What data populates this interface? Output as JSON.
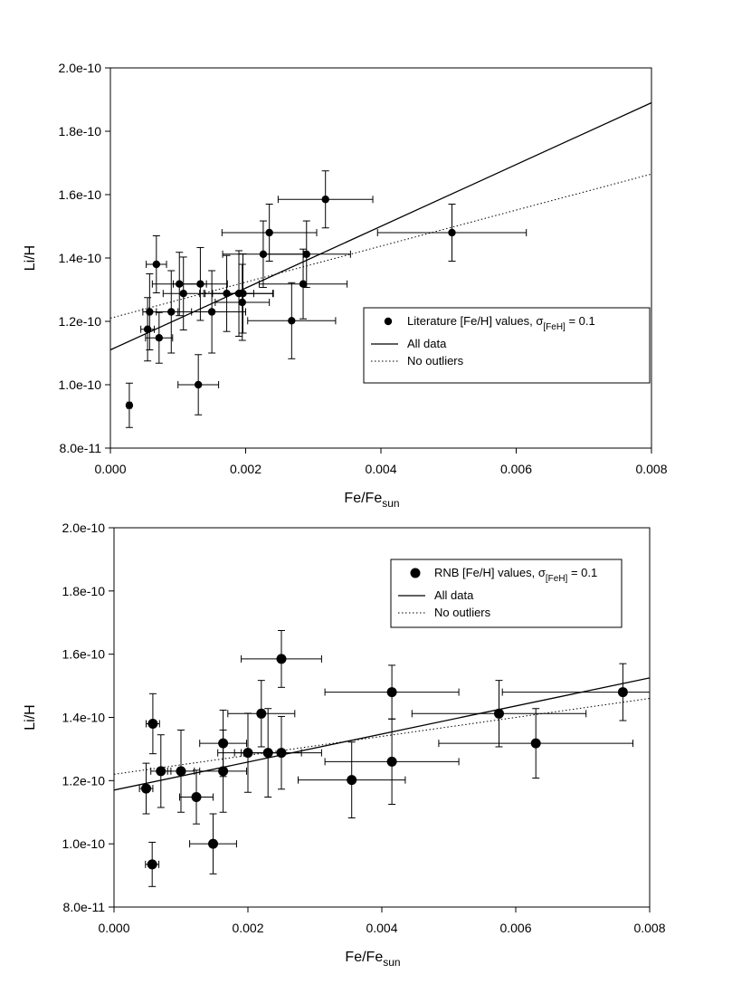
{
  "colors": {
    "ink": "#000000",
    "background": "#ffffff"
  },
  "chart_data": [
    {
      "type": "scatter",
      "xlabel": "Fe/Fe",
      "xlabel_sub": "sun",
      "ylabel": "Li/H",
      "xlim": [
        0,
        0.008
      ],
      "ylim": [
        8e-11,
        2e-10
      ],
      "x_ticks": [
        0,
        0.002,
        0.004,
        0.006,
        0.008
      ],
      "x_tick_labels": [
        "0.000",
        "0.002",
        "0.004",
        "0.006",
        "0.008"
      ],
      "y_ticks": [
        8e-11,
        1e-10,
        1.2e-10,
        1.4e-10,
        1.6e-10,
        1.8e-10,
        2e-10
      ],
      "y_tick_labels": [
        "8.0e-11",
        "1.0e-10",
        "1.2e-10",
        "1.4e-10",
        "1.6e-10",
        "1.8e-10",
        "2.0e-10"
      ],
      "grid": false,
      "legend_position": "center-right",
      "legend": {
        "points_label": "Literature [Fe/H] values, σ",
        "points_label_sub": "[FeH]",
        "points_label_suffix": " = 0.1",
        "line_label": "All data",
        "dotted_label": "No outliers"
      },
      "marker_size": "small",
      "series": [
        {
          "name": "Literature [Fe/H] values",
          "points": [
            {
              "x": 0.00028,
              "y": 9.35e-11,
              "xerr": [
                3e-05,
                3e-05
              ],
              "yerr": [
                7e-12,
                7e-12
              ]
            },
            {
              "x": 0.00055,
              "y": 1.175e-10,
              "xerr": [
                0.0001,
                0.0001
              ],
              "yerr": [
                1e-11,
                1e-11
              ]
            },
            {
              "x": 0.00058,
              "y": 1.23e-10,
              "xerr": [
                0.0001,
                0.0001
              ],
              "yerr": [
                1.2e-11,
                1.2e-11
              ]
            },
            {
              "x": 0.00068,
              "y": 1.38e-10,
              "xerr": [
                0.00015,
                0.00015
              ],
              "yerr": [
                9e-12,
                9e-12
              ]
            },
            {
              "x": 0.00072,
              "y": 1.148e-10,
              "xerr": [
                0.0002,
                0.0002
              ],
              "yerr": [
                8e-12,
                8e-12
              ]
            },
            {
              "x": 0.0009,
              "y": 1.23e-10,
              "xerr": [
                0.0003,
                0.0003
              ],
              "yerr": [
                1.3e-11,
                1.3e-11
              ]
            },
            {
              "x": 0.00102,
              "y": 1.318e-10,
              "xerr": [
                0.0004,
                0.0004
              ],
              "yerr": [
                1e-11,
                1e-11
              ]
            },
            {
              "x": 0.00108,
              "y": 1.288e-10,
              "xerr": [
                0.0003,
                0.0003
              ],
              "yerr": [
                1.15e-11,
                1.15e-11
              ]
            },
            {
              "x": 0.0013,
              "y": 1e-10,
              "xerr": [
                0.0003,
                0.0003
              ],
              "yerr": [
                9.5e-12,
                9.5e-12
              ]
            },
            {
              "x": 0.00133,
              "y": 1.318e-10,
              "xerr": [
                0.0004,
                0.0004
              ],
              "yerr": [
                1.15e-11,
                1.15e-11
              ]
            },
            {
              "x": 0.0015,
              "y": 1.23e-10,
              "xerr": [
                0.0005,
                0.0005
              ],
              "yerr": [
                1.3e-11,
                1.3e-11
              ]
            },
            {
              "x": 0.00172,
              "y": 1.288e-10,
              "xerr": [
                0.0004,
                0.0004
              ],
              "yerr": [
                1.2e-11,
                1.2e-11
              ]
            },
            {
              "x": 0.0019,
              "y": 1.288e-10,
              "xerr": [
                0.0005,
                0.0005
              ],
              "yerr": [
                1.35e-11,
                1.35e-11
              ]
            },
            {
              "x": 0.00195,
              "y": 1.26e-10,
              "xerr": [
                0.0004,
                0.0004
              ],
              "yerr": [
                1.2e-11,
                1.2e-11
              ]
            },
            {
              "x": 0.00196,
              "y": 1.288e-10,
              "xerr": [
                0.00045,
                0.00045
              ],
              "yerr": [
                1.25e-11,
                1.25e-11
              ]
            },
            {
              "x": 0.00226,
              "y": 1.412e-10,
              "xerr": [
                0.0006,
                0.0006
              ],
              "yerr": [
                1.05e-11,
                1.05e-11
              ]
            },
            {
              "x": 0.00235,
              "y": 1.48e-10,
              "xerr": [
                0.0007,
                0.0007
              ],
              "yerr": [
                9e-12,
                9e-12
              ]
            },
            {
              "x": 0.00268,
              "y": 1.202e-10,
              "xerr": [
                0.00065,
                0.00065
              ],
              "yerr": [
                1.2e-11,
                1.2e-11
              ]
            },
            {
              "x": 0.00285,
              "y": 1.318e-10,
              "xerr": [
                0.00065,
                0.00065
              ],
              "yerr": [
                1.1e-11,
                1.1e-11
              ]
            },
            {
              "x": 0.0029,
              "y": 1.412e-10,
              "xerr": [
                0.00065,
                0.00065
              ],
              "yerr": [
                1.05e-11,
                1.05e-11
              ]
            },
            {
              "x": 0.00318,
              "y": 1.585e-10,
              "xerr": [
                0.0007,
                0.0007
              ],
              "yerr": [
                9e-12,
                9e-12
              ]
            },
            {
              "x": 0.00505,
              "y": 1.48e-10,
              "xerr": [
                0.0011,
                0.0011
              ],
              "yerr": [
                9e-12,
                9e-12
              ]
            }
          ]
        }
      ],
      "fit_lines": [
        {
          "name": "All data",
          "style": "solid",
          "x": [
            0,
            0.008
          ],
          "y": [
            1.11e-10,
            1.89e-10
          ]
        },
        {
          "name": "No outliers",
          "style": "dotted",
          "x": [
            0,
            0.008
          ],
          "y": [
            1.21e-10,
            1.665e-10
          ]
        }
      ]
    },
    {
      "type": "scatter",
      "xlabel": "Fe/Fe",
      "xlabel_sub": "sun",
      "ylabel": "Li/H",
      "xlim": [
        0,
        0.008
      ],
      "ylim": [
        8e-11,
        2e-10
      ],
      "x_ticks": [
        0,
        0.002,
        0.004,
        0.006,
        0.008
      ],
      "x_tick_labels": [
        "0.000",
        "0.002",
        "0.004",
        "0.006",
        "0.008"
      ],
      "y_ticks": [
        8e-11,
        1e-10,
        1.2e-10,
        1.4e-10,
        1.6e-10,
        1.8e-10,
        2e-10
      ],
      "y_tick_labels": [
        "8.0e-11",
        "1.0e-10",
        "1.2e-10",
        "1.4e-10",
        "1.6e-10",
        "1.8e-10",
        "2.0e-10"
      ],
      "grid": false,
      "legend_position": "top-right",
      "legend": {
        "points_label": "RNB [Fe/H] values, σ",
        "points_label_sub": "[FeH]",
        "points_label_suffix": " = 0.1",
        "line_label": "All data",
        "dotted_label": "No outliers"
      },
      "marker_size": "large",
      "series": [
        {
          "name": "RNB [Fe/H] values",
          "points": [
            {
              "x": 0.00057,
              "y": 9.35e-11,
              "xerr": [
                0.0001,
                0.0001
              ],
              "yerr": [
                7e-12,
                7e-12
              ]
            },
            {
              "x": 0.00048,
              "y": 1.175e-10,
              "xerr": [
                0.0001,
                0.0001
              ],
              "yerr": [
                8e-12,
                8e-12
              ]
            },
            {
              "x": 0.0007,
              "y": 1.23e-10,
              "xerr": [
                0.00015,
                0.00015
              ],
              "yerr": [
                1.15e-11,
                1.15e-11
              ]
            },
            {
              "x": 0.00058,
              "y": 1.38e-10,
              "xerr": [
                0.0001,
                0.0001
              ],
              "yerr": [
                9.5e-12,
                9.5e-12
              ]
            },
            {
              "x": 0.001,
              "y": 1.23e-10,
              "xerr": [
                0.0002,
                0.0002
              ],
              "yerr": [
                1.3e-11,
                1.3e-11
              ]
            },
            {
              "x": 0.00123,
              "y": 1.148e-10,
              "xerr": [
                0.00025,
                0.00025
              ],
              "yerr": [
                8.5e-12,
                8.5e-12
              ]
            },
            {
              "x": 0.00148,
              "y": 1e-10,
              "xerr": [
                0.00035,
                0.00035
              ],
              "yerr": [
                9.5e-12,
                9.5e-12
              ]
            },
            {
              "x": 0.00163,
              "y": 1.318e-10,
              "xerr": [
                0.00035,
                0.00035
              ],
              "yerr": [
                1.05e-11,
                1.05e-11
              ]
            },
            {
              "x": 0.00163,
              "y": 1.23e-10,
              "xerr": [
                0.00035,
                0.00035
              ],
              "yerr": [
                1.3e-11,
                1.3e-11
              ]
            },
            {
              "x": 0.002,
              "y": 1.288e-10,
              "xerr": [
                0.00045,
                0.00045
              ],
              "yerr": [
                1.25e-11,
                1.25e-11
              ]
            },
            {
              "x": 0.0022,
              "y": 1.412e-10,
              "xerr": [
                0.0005,
                0.0005
              ],
              "yerr": [
                1.05e-11,
                1.05e-11
              ]
            },
            {
              "x": 0.0023,
              "y": 1.288e-10,
              "xerr": [
                0.0005,
                0.0005
              ],
              "yerr": [
                1.4e-11,
                1.4e-11
              ]
            },
            {
              "x": 0.0025,
              "y": 1.585e-10,
              "xerr": [
                0.0006,
                0.0006
              ],
              "yerr": [
                9e-12,
                9e-12
              ]
            },
            {
              "x": 0.0025,
              "y": 1.288e-10,
              "xerr": [
                0.0006,
                0.0006
              ],
              "yerr": [
                1.15e-11,
                1.15e-11
              ]
            },
            {
              "x": 0.00355,
              "y": 1.202e-10,
              "xerr": [
                0.0008,
                0.0008
              ],
              "yerr": [
                1.2e-11,
                1.2e-11
              ]
            },
            {
              "x": 0.00415,
              "y": 1.48e-10,
              "xerr": [
                0.001,
                0.001
              ],
              "yerr": [
                8.5e-12,
                8.5e-12
              ]
            },
            {
              "x": 0.00415,
              "y": 1.26e-10,
              "xerr": [
                0.001,
                0.001
              ],
              "yerr": [
                1.35e-11,
                1.35e-11
              ]
            },
            {
              "x": 0.00575,
              "y": 1.412e-10,
              "xerr": [
                0.0013,
                0.0013
              ],
              "yerr": [
                1.05e-11,
                1.05e-11
              ]
            },
            {
              "x": 0.0063,
              "y": 1.318e-10,
              "xerr": [
                0.00145,
                0.00145
              ],
              "yerr": [
                1.1e-11,
                1.1e-11
              ]
            },
            {
              "x": 0.0076,
              "y": 1.48e-10,
              "xerr": [
                0.0018,
                0.0018
              ],
              "yerr": [
                9e-12,
                9e-12
              ]
            }
          ]
        }
      ],
      "fit_lines": [
        {
          "name": "All data",
          "style": "solid",
          "x": [
            0,
            0.008
          ],
          "y": [
            1.17e-10,
            1.525e-10
          ]
        },
        {
          "name": "No outliers",
          "style": "dotted",
          "x": [
            0,
            0.008
          ],
          "y": [
            1.22e-10,
            1.46e-10
          ]
        }
      ]
    }
  ]
}
